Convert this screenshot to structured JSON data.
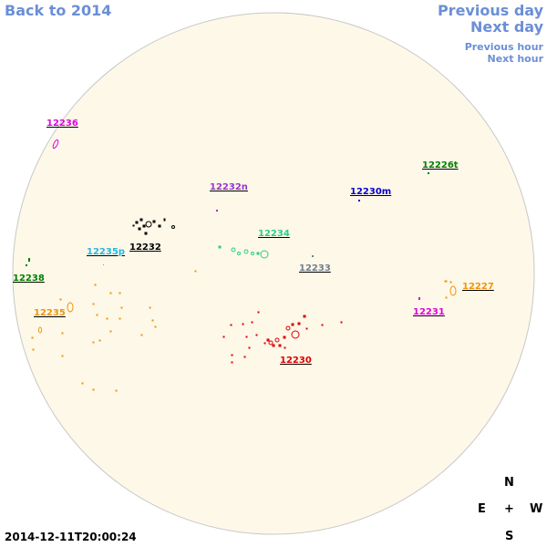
{
  "nav": {
    "back_label": "Back to 2014",
    "prev_day_label": "Previous day",
    "next_day_label": "Next day",
    "prev_hour_label": "Previous hour",
    "next_hour_label": "Next hour"
  },
  "timestamp": "2014-12-11T20:00:24",
  "compass": {
    "north": "N",
    "south": "S",
    "east": "E",
    "west": "W",
    "center": "+"
  },
  "colors": {
    "disk_fill": "#fdf8e8",
    "disk_stroke": "#c8c8c8",
    "link": "#6b8fd6"
  },
  "regions": [
    {
      "label": "12236",
      "color": "#e000e0",
      "icon": "sunspot-group"
    },
    {
      "label": "12226t",
      "color": "#008000",
      "icon": "sunspot-group"
    },
    {
      "label": "12232n",
      "color": "#9933cc",
      "icon": "sunspot-group"
    },
    {
      "label": "12230m",
      "color": "#0000cc",
      "icon": "sunspot-group"
    },
    {
      "label": "12232",
      "color": "#000000",
      "icon": "sunspot-group"
    },
    {
      "label": "12234",
      "color": "#2ecc8a",
      "icon": "sunspot-group"
    },
    {
      "label": "12235p",
      "color": "#29b6e0",
      "icon": "sunspot-group"
    },
    {
      "label": "12233",
      "color": "#708090",
      "icon": "sunspot-group"
    },
    {
      "label": "12238",
      "color": "#008000",
      "icon": "sunspot-group"
    },
    {
      "label": "12227",
      "color": "#f0950a",
      "icon": "sunspot-group"
    },
    {
      "label": "12235",
      "color": "#f0950a",
      "icon": "sunspot-group"
    },
    {
      "label": "12231",
      "color": "#e000e0",
      "icon": "sunspot-group"
    },
    {
      "label": "12230",
      "color": "#dd0000",
      "icon": "sunspot-group"
    }
  ]
}
